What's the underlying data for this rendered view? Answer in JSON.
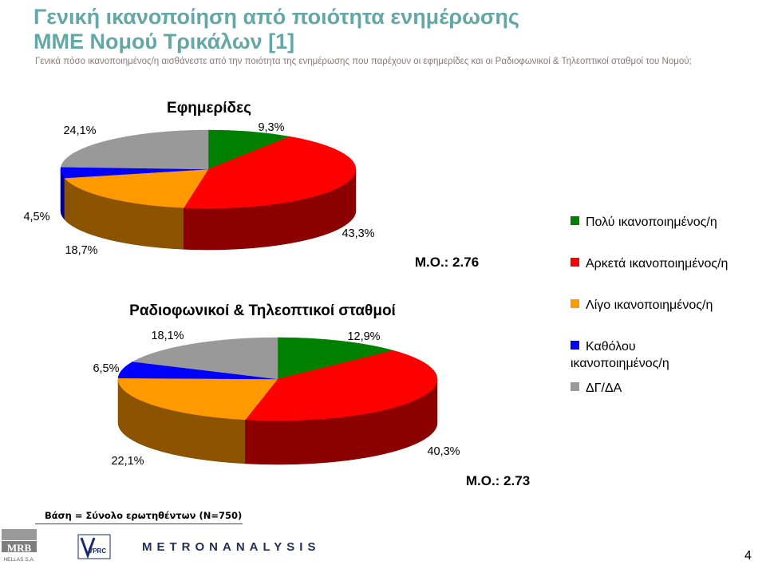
{
  "title_line1": "Γενική ικανοποίηση από ποιότητα ενημέρωσης",
  "title_line2": "ΜΜΕ Νομού Τρικάλων [1]",
  "subtitle": "Γενικά πόσο ικανοποιημένος/η αισθάνεστε από την ποιότητα της ενημέρωσης που παρέχουν οι εφημερίδες και οι Ραδιοφωνικοί & Τηλεοπτικοί σταθμοί του Νομού;",
  "colors": {
    "very_satisfied": "#008000",
    "fairly_satisfied": "#ff0000",
    "little_satisfied": "#ff9900",
    "not_satisfied": "#0000ff",
    "dk_na": "#999999"
  },
  "legend": [
    {
      "label": "Πολύ ικανοποιημένος/η",
      "color": "#008000"
    },
    {
      "label": "Αρκετά ικανοποιημένος/η",
      "color": "#ff0000"
    },
    {
      "label": "Λίγο ικανοποιημένος/η",
      "color": "#ff9900"
    },
    {
      "label": "Καθόλου ικανοποιημένος/η",
      "color": "#0000ff"
    },
    {
      "label": "ΔΓ/ΔΑ",
      "color": "#999999"
    }
  ],
  "chart_data": [
    {
      "type": "pie",
      "title": "Εφημερίδες",
      "categories": [
        "Πολύ ικανοποιημένος/η",
        "Αρκετά ικανοποιημένος/η",
        "Λίγο ικανοποιημένος/η",
        "Καθόλου ικανοποιημένος/η",
        "ΔΓ/ΔΑ"
      ],
      "values": [
        9.3,
        43.3,
        18.7,
        4.5,
        24.1
      ],
      "labels": [
        "9,3%",
        "43,3%",
        "18,7%",
        "4,5%",
        "24,1%"
      ],
      "annotation": "Μ.Ο.: 2.76"
    },
    {
      "type": "pie",
      "title": "Ραδιοφωνικοί & Τηλεοπτικοί σταθμοί",
      "categories": [
        "Πολύ ικανοποιημένος/η",
        "Αρκετά ικανοποιημένος/η",
        "Λίγο ικανοποιημένος/η",
        "Καθόλου ικανοποιημένος/η",
        "ΔΓ/ΔΑ"
      ],
      "values": [
        12.9,
        40.3,
        22.1,
        6.5,
        18.1
      ],
      "labels": [
        "12,9%",
        "40,3%",
        "22,1%",
        "6,5%",
        "18,1%"
      ],
      "annotation": "Μ.Ο.: 2.73"
    }
  ],
  "base_note": "Βάση = Σύνολο ερωτηθέντων (Ν=750)",
  "logos": {
    "mrb_text": "MRB",
    "mrb_sub": "HELLAS S.A.",
    "vprc_text": "VPRC",
    "metron_text": "METRONANALYSIS"
  },
  "page_number": "4"
}
